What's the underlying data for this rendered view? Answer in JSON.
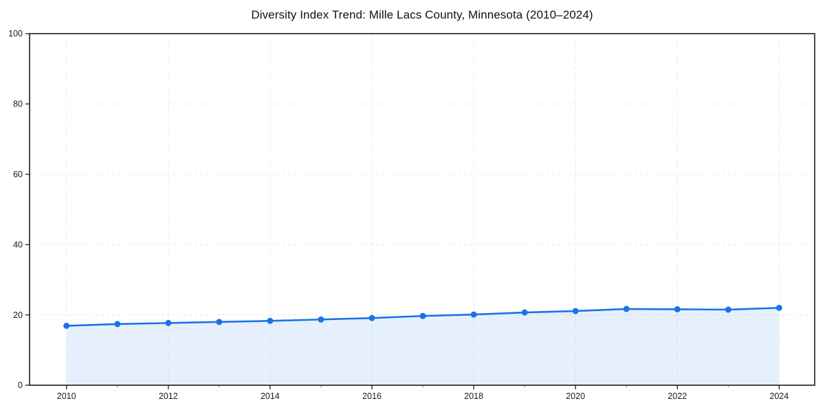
{
  "chart_data": {
    "type": "line",
    "title": "Diversity Index Trend: Mille Lacs County, Minnesota (2010–2024)",
    "xlabel": "",
    "ylabel": "",
    "x": [
      2010,
      2011,
      2012,
      2013,
      2014,
      2015,
      2016,
      2017,
      2018,
      2019,
      2020,
      2021,
      2022,
      2023,
      2024
    ],
    "series": [
      {
        "name": "Diversity Index",
        "values": [
          16.9,
          17.4,
          17.7,
          18.0,
          18.3,
          18.7,
          19.1,
          19.7,
          20.1,
          20.7,
          21.1,
          21.7,
          21.6,
          21.5,
          22.0
        ]
      }
    ],
    "ylim": [
      0,
      100
    ],
    "y_ticks": [
      0,
      20,
      40,
      60,
      80,
      100
    ],
    "y_tick_labels": [
      "0",
      "20",
      "40",
      "60",
      "80",
      "100"
    ],
    "x_major_ticks": [
      2010,
      2012,
      2014,
      2016,
      2018,
      2020,
      2022,
      2024
    ],
    "x_tick_labels": [
      "2010",
      "2012",
      "2014",
      "2016",
      "2018",
      "2020",
      "2022",
      "2024"
    ],
    "grid": true,
    "grid_style": "dashed",
    "legend": "none",
    "markers": true,
    "area_fill": true,
    "colors": {
      "line": "#1a73e8",
      "marker": "#1a73e8",
      "fill": "rgba(26,115,232,0.11)",
      "grid": "#e7e7e7",
      "spine": "#1c1c1c",
      "tick_text": "#1a1a1a",
      "background": "#ffffff"
    }
  }
}
